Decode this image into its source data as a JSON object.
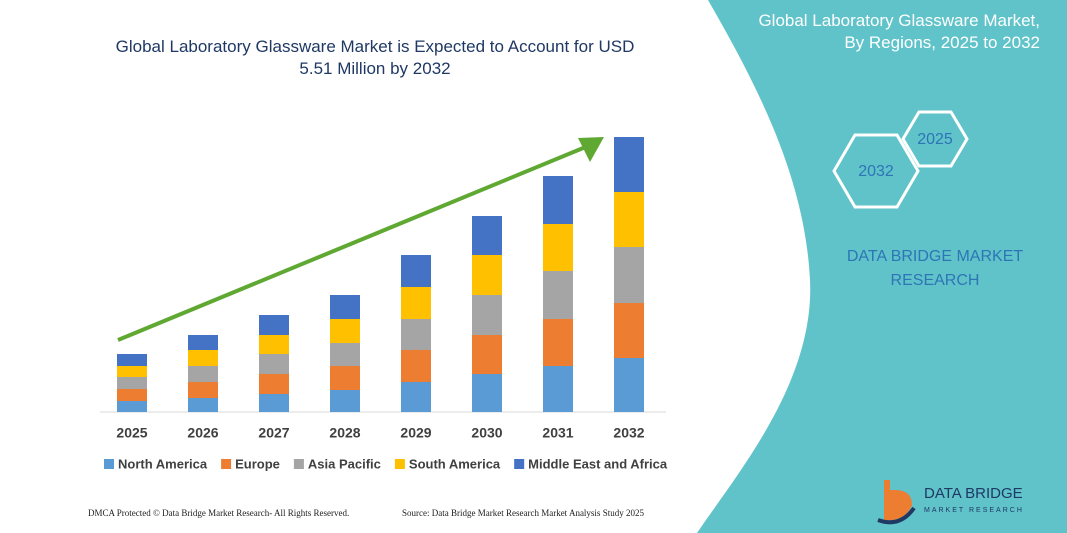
{
  "chart_data": {
    "type": "stacked-bar",
    "title": "Global Laboratory Glassware Market is Expected to Account for USD 5.51 Million by 2032",
    "categories": [
      "2025",
      "2026",
      "2027",
      "2028",
      "2029",
      "2030",
      "2031",
      "2032"
    ],
    "series": [
      {
        "name": "North America",
        "color": "#5b9bd5",
        "values": [
          11,
          14,
          18,
          22,
          30,
          38,
          46,
          54
        ]
      },
      {
        "name": "Europe",
        "color": "#ed7d31",
        "values": [
          12,
          16,
          20,
          24,
          32,
          39,
          47,
          55
        ]
      },
      {
        "name": "Asia Pacific",
        "color": "#a5a5a5",
        "values": [
          12,
          16,
          20,
          23,
          31,
          40,
          48,
          56
        ]
      },
      {
        "name": "South America",
        "color": "#ffc000",
        "values": [
          11,
          16,
          19,
          24,
          32,
          40,
          47,
          55
        ]
      },
      {
        "name": "Middle East and Africa",
        "color": "#4472c4",
        "values": [
          12,
          15,
          20,
          24,
          32,
          39,
          48,
          55
        ]
      }
    ]
  },
  "panel": {
    "title": "Global Laboratory Glassware Market, By Regions, 2025 to 2032",
    "hex_small": "2025",
    "hex_large": "2032",
    "brand": "DATA BRIDGE MARKET RESEARCH",
    "logo": "DATA BRIDGE",
    "logo_sub": "MARKET RESEARCH"
  },
  "footer": {
    "left": "DMCA Protected © Data Bridge Market Research- All Rights Reserved.",
    "right": "Source: Data Bridge Market Research Market Analysis Study 2025"
  }
}
